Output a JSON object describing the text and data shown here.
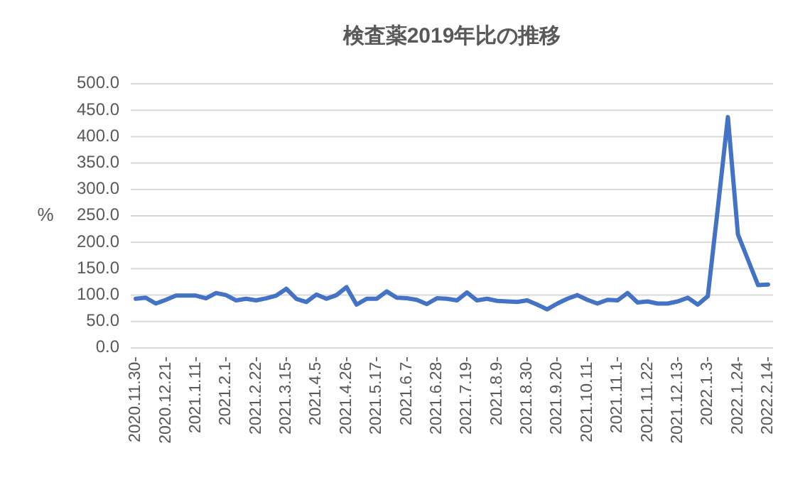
{
  "chart_data": {
    "type": "line",
    "title": "検査薬2019年比の推移",
    "ylabel": "%",
    "categories": [
      "2020.11.30-",
      null,
      null,
      "2020.12.21-",
      null,
      null,
      "2021.1.11-",
      null,
      null,
      "2021.2.1-",
      null,
      null,
      "2021.2.22-",
      null,
      null,
      "2021.3.15-",
      null,
      null,
      "2021.4.5-",
      null,
      null,
      "2021.4.26-",
      null,
      null,
      "2021.5.17-",
      null,
      null,
      "2021.6.7-",
      null,
      null,
      "2021.6.28-",
      null,
      null,
      "2021.7.19-",
      null,
      null,
      "2021.8.9-",
      null,
      null,
      "2021.8.30-",
      null,
      null,
      "2021.9.20-",
      null,
      null,
      "2021.10.11-",
      null,
      null,
      "2021.11.1-",
      null,
      null,
      "2021.11.22-",
      null,
      null,
      "2021.12.13-",
      null,
      null,
      "2022.1.3-",
      null,
      null,
      "2022.1.24-",
      null,
      null,
      "2022.2.14-"
    ],
    "series": [
      {
        "color": "#4472c4",
        "values": [
          93,
          95,
          84,
          91,
          99,
          99,
          99,
          94,
          104,
          100,
          90,
          93,
          90,
          94,
          99,
          112,
          93,
          87,
          101,
          93,
          100,
          115,
          82,
          93,
          93,
          107,
          95,
          94,
          91,
          83,
          94,
          93,
          90,
          105,
          90,
          93,
          89,
          88,
          87,
          90,
          82,
          73,
          84,
          93,
          100,
          91,
          84,
          91,
          90,
          104,
          86,
          88,
          84,
          84,
          88,
          95,
          82,
          98,
          265,
          437,
          215,
          167,
          119,
          120
        ]
      }
    ],
    "ylim": [
      0,
      500
    ],
    "yticks": [
      {
        "value": 0,
        "label": "0.0"
      },
      {
        "value": 50,
        "label": "50.0"
      },
      {
        "value": 100,
        "label": "100.0"
      },
      {
        "value": 150,
        "label": "150.0"
      },
      {
        "value": 200,
        "label": "200.0"
      },
      {
        "value": 250,
        "label": "250.0"
      },
      {
        "value": 300,
        "label": "300.0"
      },
      {
        "value": 350,
        "label": "350.0"
      },
      {
        "value": 400,
        "label": "400.0"
      },
      {
        "value": 450,
        "label": "450.0"
      },
      {
        "value": 500,
        "label": "500.0"
      }
    ],
    "grid": "y",
    "marker": "none",
    "line_style": "solid"
  }
}
